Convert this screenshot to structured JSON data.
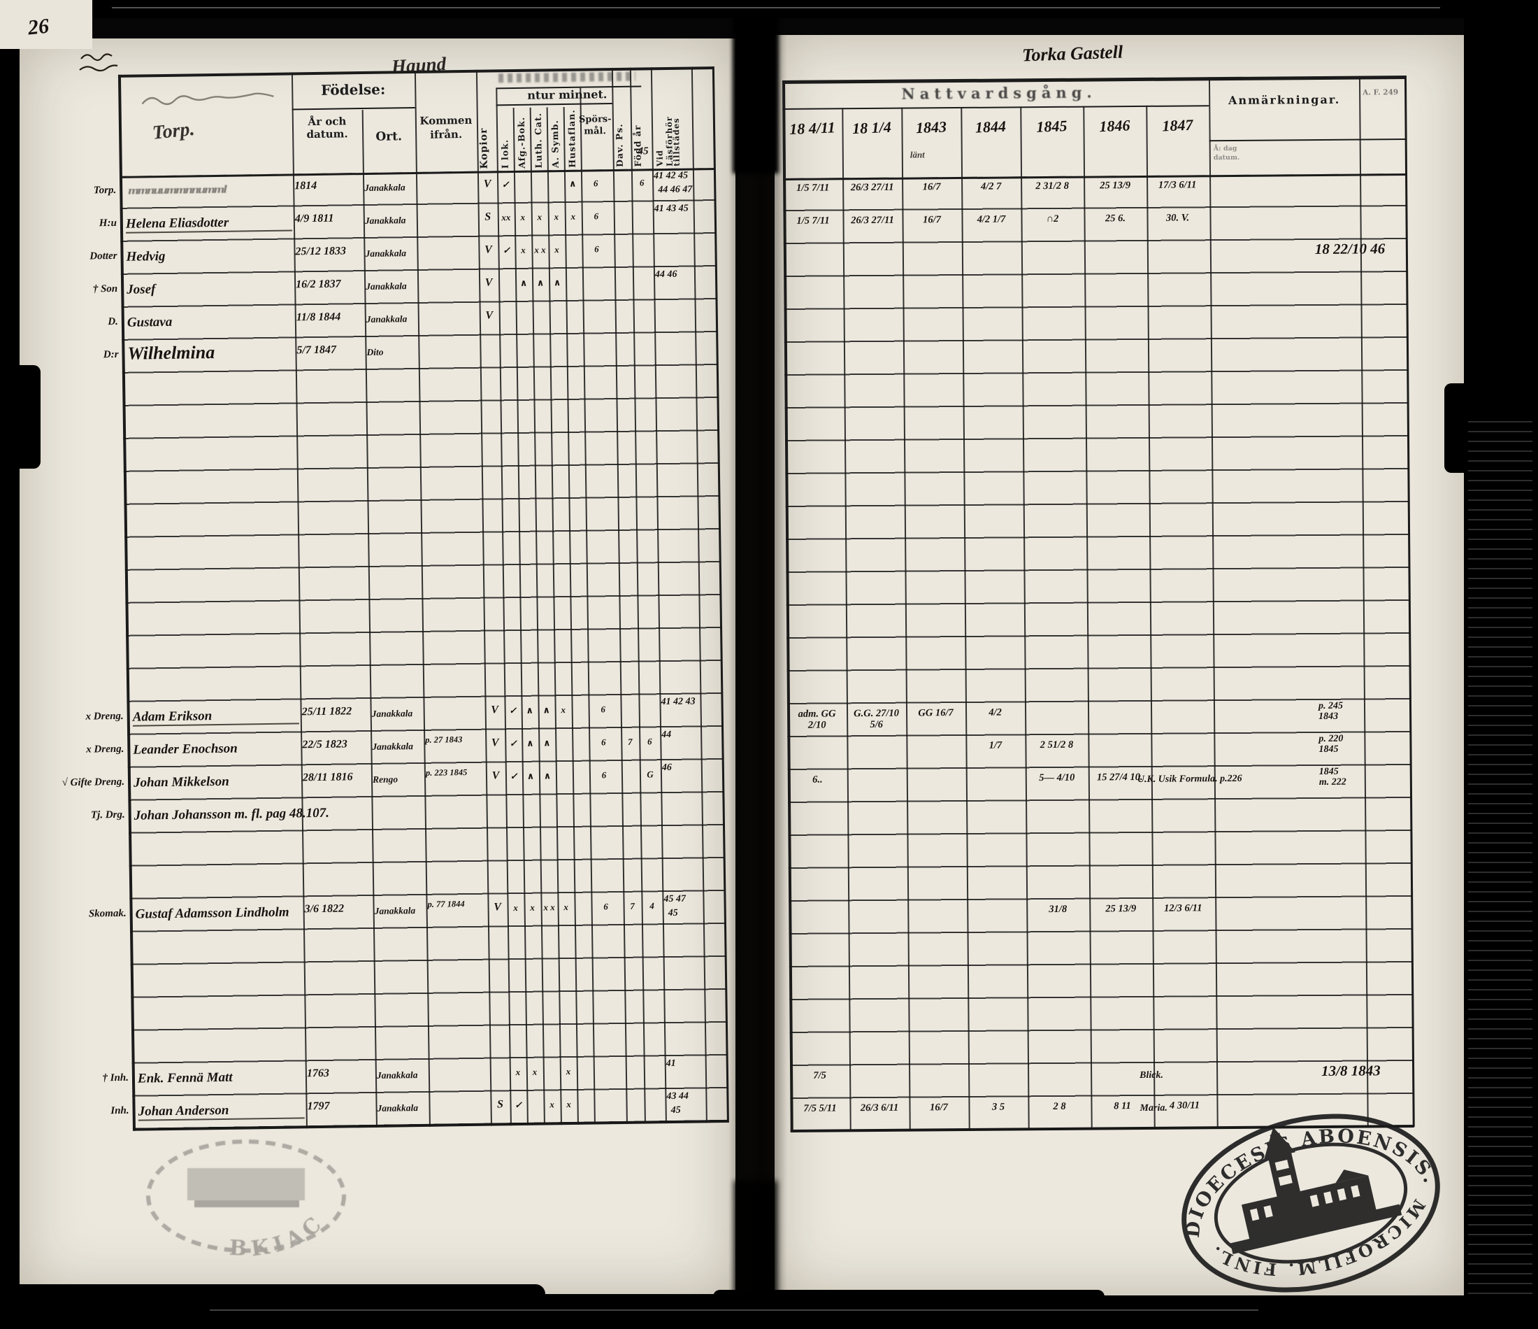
{
  "scan": {
    "page_number": "26"
  },
  "left_page": {
    "title_handwritten": "Haund",
    "header": {
      "name_column_script": "Torp.",
      "fodelse": "Födelse:",
      "ar_och_datum": "År och datum.",
      "ort": "Ort.",
      "kommen_ifran": "Kommen ifrån.",
      "kopior": "Kopior",
      "utur_minnet": "ntur minnet.",
      "i_lok": "I lok.",
      "afg_bok": "Afg.-Bok.",
      "luth_cat": "Luth. Cat.",
      "a_symb": "A. Symb.",
      "hustaflan": "Hustaflan.",
      "sporsmal": "Spörs-mål.",
      "dav_ps": "Dav. Ps.",
      "fodd_ar": "Född år",
      "vid_forhor_1": "Vid Läsförhör",
      "vid_forhor_2": "tillstädes",
      "header_note": "45"
    },
    "rows": [
      {
        "r": 0,
        "margin": "Torp.",
        "name": "",
        "illegible": true,
        "birth": "1814",
        "place": "Janakkala",
        "kommen": "",
        "kopior": "V",
        "marks": {
          "ilok": "✓",
          "afg": "",
          "luth": "",
          "asymb": "",
          "hust": "∧",
          "spors": "6",
          "dav": "",
          "first": "6"
        },
        "years1": "41 42 45",
        "years2": "44 46 47"
      },
      {
        "r": 1,
        "margin": "H:u",
        "name": "Helena Eliasdotter",
        "underline": true,
        "birth": "4/9 1811",
        "place": "Janakkala",
        "kommen": "",
        "kopior": "S",
        "marks": {
          "ilok": "xx",
          "afg": "x",
          "luth": "x",
          "asymb": "x",
          "hust": "x",
          "spors": "6",
          "dav": "",
          "first": ""
        },
        "years1": "41 43 45",
        "years2": ""
      },
      {
        "r": 2,
        "margin": "Dotter",
        "name": "Hedvig",
        "birth": "25/12 1833",
        "place": "Janakkala",
        "kommen": "",
        "kopior": "V",
        "marks": {
          "ilok": "✓",
          "afg": "x",
          "luth": "x x",
          "asymb": "x",
          "hust": "",
          "spors": "6",
          "dav": "",
          "first": ""
        },
        "years1": "",
        "years2": ""
      },
      {
        "r": 3,
        "margin": "† Son",
        "name": "Josef",
        "birth": "16/2 1837",
        "place": "Janakkala",
        "kommen": "",
        "kopior": "V",
        "marks": {
          "ilok": "",
          "afg": "∧",
          "luth": "∧",
          "asymb": "∧",
          "hust": "",
          "spors": "",
          "dav": "",
          "first": ""
        },
        "years1": "44 46",
        "years2": ""
      },
      {
        "r": 4,
        "margin": "D.",
        "name": "Gustava",
        "birth": "11/8 1844",
        "place": "Janakkala",
        "kommen": "",
        "kopior": "V",
        "marks": {},
        "years1": "",
        "years2": ""
      },
      {
        "r": 5,
        "margin": "D:r",
        "name": "Wilhelmina",
        "script_large": true,
        "birth": "5/7 1847",
        "place": "Dito",
        "kommen": "",
        "kopior": "",
        "marks": {},
        "years1": "",
        "years2": ""
      },
      {
        "r": 16,
        "margin": "x Dreng.",
        "name": "Adam Erikson",
        "underline": true,
        "birth": "25/11 1822",
        "place": "Janakkala",
        "kommen": "",
        "kopior": "V",
        "marks": {
          "ilok": "✓",
          "afg": "∧",
          "luth": "∧",
          "asymb": "x",
          "hust": "",
          "spors": "6",
          "dav": "",
          "first": ""
        },
        "years1": "41 42 43",
        "years2": ""
      },
      {
        "r": 17,
        "margin": "x Dreng.",
        "name": "Leander Enochson",
        "birth": "22/5 1823",
        "place": "Janakkala",
        "kommen": "p. 27 1843",
        "kopior": "V",
        "marks": {
          "ilok": "✓",
          "afg": "∧",
          "luth": "∧",
          "asymb": "",
          "hust": "",
          "spors": "6",
          "dav": "7",
          "first": "6"
        },
        "years1": "44",
        "years2": ""
      },
      {
        "r": 18,
        "margin": "√ Gifte Dreng.",
        "name": "Johan Mikkelson",
        "birth": "28/11 1816",
        "place": "Rengo",
        "kommen": "p. 223 1845",
        "kopior": "V",
        "marks": {
          "ilok": "✓",
          "afg": "∧",
          "luth": "∧",
          "asymb": "",
          "hust": "",
          "spors": "6",
          "dav": "",
          "first": "G"
        },
        "years1": "46",
        "years2": ""
      },
      {
        "r": 19,
        "margin": "Tj. Drg.",
        "name": "Johan Johansson m. fl. pag 48.107.",
        "long": true,
        "marks": {},
        "years1": "",
        "years2": ""
      },
      {
        "r": 22,
        "margin": "Skomak.",
        "name": "Gustaf Adamsson Lindholm",
        "birth": "3/6 1822",
        "place": "Janakkala",
        "kommen": "p. 77 1844",
        "kopior": "V",
        "marks": {
          "ilok": "x",
          "afg": "x",
          "luth": "x x",
          "asymb": "x",
          "hust": "",
          "spors": "6",
          "dav": "7",
          "first": "4"
        },
        "years1": "45 47",
        "years2": "45"
      },
      {
        "r": 27,
        "margin": "† Inh.",
        "name": "Enk. Fennä Matt",
        "birth": "1763",
        "place": "Janakkala",
        "kommen": "",
        "kopior": "",
        "marks": {
          "ilok": "x",
          "afg": "x",
          "luth": "",
          "asymb": "x",
          "hust": "",
          "spors": "",
          "dav": "",
          "first": ""
        },
        "years1": "41",
        "years2": ""
      },
      {
        "r": 28,
        "margin": "Inh.",
        "name": "Johan Anderson",
        "underline": true,
        "birth": "1797",
        "place": "Janakkala",
        "kommen": "",
        "kopior": "S",
        "marks": {
          "ilok": "✓",
          "afg": "",
          "luth": "x",
          "asymb": "x",
          "hust": "",
          "spors": "",
          "dav": "",
          "first": ""
        },
        "years1": "43 44",
        "years2": "45"
      }
    ]
  },
  "right_page": {
    "title_handwritten": "Torka Gastell",
    "printed_title": "Nattvardsgång.",
    "years": [
      "18 4/11",
      "18 1/4",
      "1843",
      "1844",
      "1845",
      "1846",
      "1847"
    ],
    "year_note": "länt",
    "anmarkningar": "Anmärkningar.",
    "corner_code": "A. F. 249",
    "date_subcolumn": "Å: dag datum.",
    "rows": [
      {
        "r": 0,
        "cells": [
          "1/5 7/11",
          "26/3 27/11",
          "16/7",
          "4/2 7",
          "2 31/2 8",
          "25 13/9",
          "17/3 6/11"
        ],
        "anm": "",
        "far": ""
      },
      {
        "r": 1,
        "cells": [
          "1/5 7/11",
          "26/3 27/11",
          "16/7",
          "4/2 1/7",
          "∩2",
          "25 6.",
          "30. V."
        ],
        "anm": "",
        "far": ""
      },
      {
        "r": 2,
        "cells": [
          "",
          "",
          "",
          "",
          "",
          "",
          ""
        ],
        "anm": "",
        "far": "18 22/10 46",
        "far_large": true
      },
      {
        "r": 16,
        "cells": [
          "adm. GG 2/10",
          "G.G. 27/10 5/6",
          "GG 16/7",
          "4/2",
          "",
          "",
          ""
        ],
        "anm": "",
        "far": "p. 245\n1843"
      },
      {
        "r": 17,
        "cells": [
          "",
          "",
          "",
          "1/7",
          "2 51/2 8",
          "",
          ""
        ],
        "anm": "",
        "far": "p. 220\n1845"
      },
      {
        "r": 18,
        "cells": [
          "6..",
          "",
          "",
          "",
          "5— 4/10",
          "15 27/4 10.",
          ""
        ],
        "anm": "U.K. Usik Formula. p.226",
        "far": "1845\nm. 222"
      },
      {
        "r": 22,
        "cells": [
          "",
          "",
          "",
          "",
          "31/8",
          "25 13/9",
          "12/3 6/11"
        ],
        "anm": "",
        "far": ""
      },
      {
        "r": 27,
        "cells": [
          "7/5",
          "",
          "",
          "",
          "",
          "",
          ""
        ],
        "anm": "Blick.",
        "far": "13/8 1843",
        "far_large": true
      },
      {
        "r": 28,
        "cells": [
          "7/5 5/11",
          "26/3 6/11",
          "16/7",
          "3 5",
          "2 8",
          "8 11",
          "4 30/11"
        ],
        "anm": "Maria.",
        "far": ""
      }
    ]
  },
  "stamps": {
    "dioecesis_top": "DIOECESIS ABOENSIS.",
    "dioecesis_bottom": "MICROFILM. FINL.",
    "faint_left": "BKIAC"
  }
}
